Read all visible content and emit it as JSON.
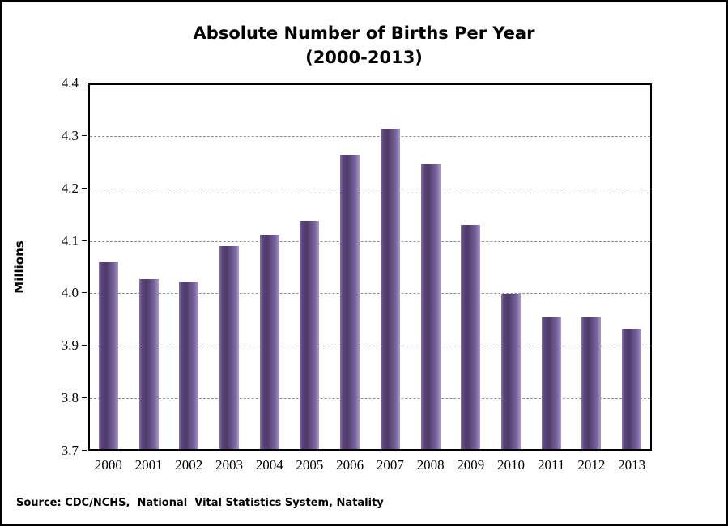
{
  "title": {
    "line1": "Absolute Number of Births Per Year",
    "line2": "(2000-2013)"
  },
  "source": {
    "text": "Source: CDC/NCHS,  National  Vital Statistics System, Natality"
  },
  "chart_data": {
    "type": "bar",
    "title": "Absolute Number of Births Per Year (2000-2013)",
    "xlabel": "",
    "ylabel": "Millions",
    "categories": [
      "2000",
      "2001",
      "2002",
      "2003",
      "2004",
      "2005",
      "2006",
      "2007",
      "2008",
      "2009",
      "2010",
      "2011",
      "2012",
      "2013"
    ],
    "values": [
      4.059,
      4.026,
      4.022,
      4.09,
      4.112,
      4.138,
      4.266,
      4.316,
      4.248,
      4.131,
      3.999,
      3.954,
      3.953,
      3.932
    ],
    "ylim": [
      3.7,
      4.4
    ],
    "ytick_step": 0.1,
    "ytick_labels": [
      "4.4",
      "4.3",
      "4.2",
      "4.1",
      "4.0",
      "3.9",
      "3.8",
      "3.7"
    ],
    "grid": "horizontal-dashed",
    "legend": "none",
    "bar_gradient_stops": [
      {
        "color": "#8374a8",
        "pos": 0
      },
      {
        "color": "#5a4479",
        "pos": 14
      },
      {
        "color": "#4e3a68",
        "pos": 38
      },
      {
        "color": "#7b67a1",
        "pos": 80
      },
      {
        "color": "#a99cc6",
        "pos": 100
      }
    ],
    "gridline_color": "#8f8f8f",
    "axis_color": "#000000"
  }
}
